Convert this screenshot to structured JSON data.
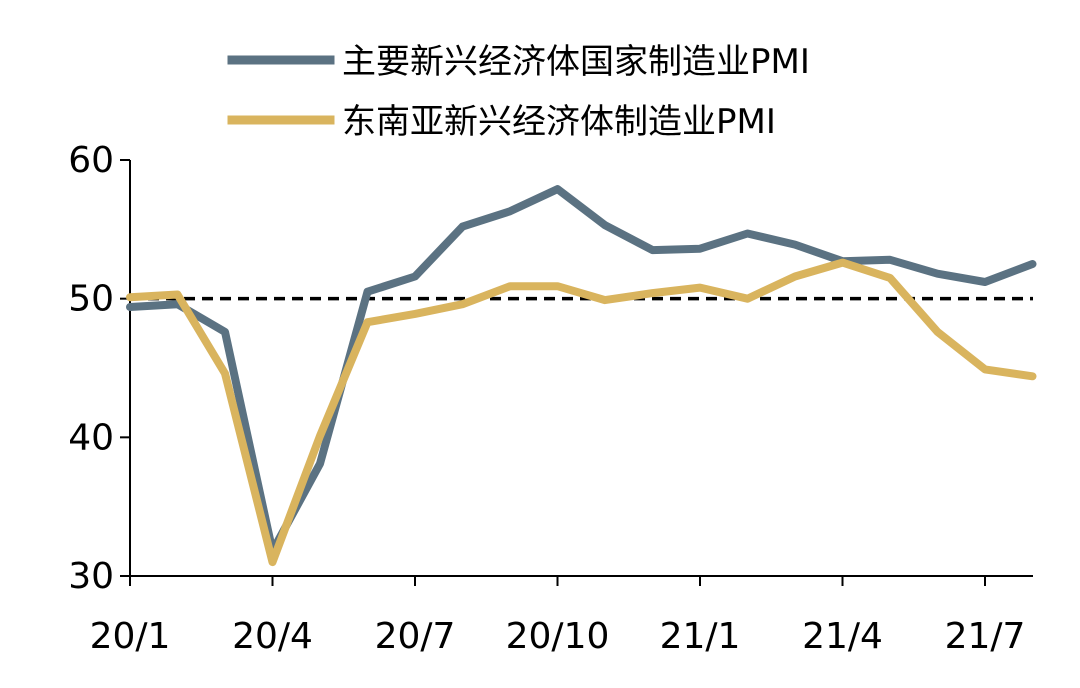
{
  "chart_data": {
    "type": "line",
    "title": "",
    "xlabel": "",
    "ylabel": "",
    "x": [
      "20/1",
      "20/2",
      "20/3",
      "20/4",
      "20/5",
      "20/6",
      "20/7",
      "20/8",
      "20/9",
      "20/10",
      "20/11",
      "20/12",
      "21/1",
      "21/2",
      "21/3",
      "21/4",
      "21/5",
      "21/6",
      "21/7",
      "21/8"
    ],
    "x_tick_labels": [
      "20/1",
      "20/4",
      "20/7",
      "20/10",
      "21/1",
      "21/4",
      "21/7"
    ],
    "y_ticks": [
      30,
      40,
      50,
      60
    ],
    "ylim": [
      30,
      60
    ],
    "reference_line": {
      "y": 50,
      "style": "dashed",
      "color": "#000000"
    },
    "legend_position": "top",
    "grid": false,
    "series": [
      {
        "name": "主要新兴经济体国家制造业PMI",
        "color": "#5b7282",
        "values": [
          49.4,
          49.6,
          47.6,
          31.8,
          38.1,
          50.5,
          51.6,
          55.2,
          56.3,
          57.9,
          55.3,
          53.5,
          53.6,
          54.7,
          53.9,
          52.7,
          52.8,
          51.8,
          51.2,
          52.5
        ]
      },
      {
        "name": "东南亚新兴经济体制造业PMI",
        "color": "#d9b45e",
        "values": [
          50.1,
          50.3,
          44.6,
          31.0,
          40.1,
          48.3,
          48.9,
          49.6,
          50.9,
          50.9,
          49.9,
          50.4,
          50.8,
          50.0,
          51.6,
          52.6,
          51.5,
          47.6,
          44.9,
          44.4
        ]
      }
    ]
  }
}
